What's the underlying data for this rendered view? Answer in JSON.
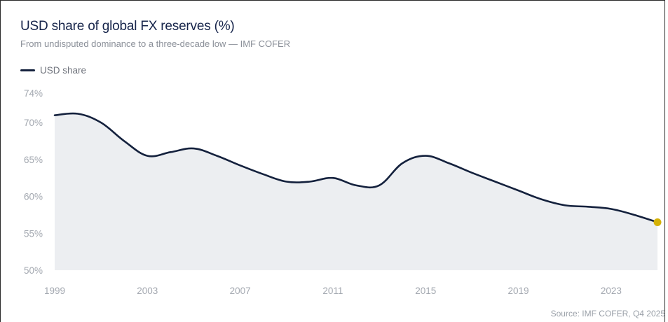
{
  "title": "USD share of global FX reserves (%)",
  "subtitle": "From undisputed dominance to a three-decade low — IMF COFER",
  "source": "Source: IMF COFER, Q4 2025",
  "legend": {
    "label": "USD share",
    "color": "#14213d"
  },
  "colors": {
    "line": "#14213d",
    "area": "#eceef1",
    "endpoint": "#d4b106"
  },
  "chart_data": {
    "type": "area",
    "title": "USD share of global FX reserves (%)",
    "subtitle": "From undisputed dominance to a three-decade low — IMF COFER",
    "xlabel": "",
    "ylabel": "",
    "xlim": [
      1999,
      2025
    ],
    "ylim": [
      50,
      74
    ],
    "ytick_values": [
      50,
      55,
      60,
      65,
      70,
      74
    ],
    "yticks": [
      "50%",
      "55%",
      "60%",
      "65%",
      "70%",
      "74%"
    ],
    "xticks": [
      "1999",
      "2003",
      "2007",
      "2011",
      "2015",
      "2019",
      "2023"
    ],
    "xtick_values": [
      1999,
      2003,
      2007,
      2011,
      2015,
      2019,
      2023
    ],
    "legend_position": "top-left",
    "grid": false,
    "series": [
      {
        "name": "USD share",
        "x": [
          1999,
          2000,
          2001,
          2002,
          2003,
          2004,
          2005,
          2006,
          2007,
          2008,
          2009,
          2010,
          2011,
          2012,
          2013,
          2014,
          2015,
          2016,
          2017,
          2018,
          2019,
          2020,
          2021,
          2022,
          2023,
          2024,
          2025
        ],
        "values": [
          71.0,
          71.2,
          70.0,
          67.5,
          65.5,
          66.0,
          66.5,
          65.5,
          64.2,
          63.0,
          62.0,
          62.0,
          62.5,
          61.5,
          61.5,
          64.5,
          65.5,
          64.5,
          63.2,
          62.0,
          60.8,
          59.6,
          58.8,
          58.6,
          58.3,
          57.5,
          56.5
        ]
      }
    ],
    "highlight_last_point": true
  }
}
